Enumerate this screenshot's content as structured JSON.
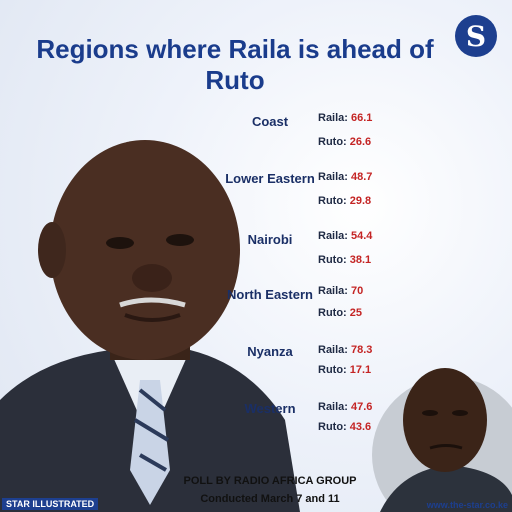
{
  "title": "Regions where Raila is ahead of Ruto",
  "logo": {
    "letter": "S",
    "icon": "the-star-logo-icon"
  },
  "candidates": {
    "a_label": "Raila:",
    "b_label": "Ruto:"
  },
  "regions": [
    {
      "name": "Coast",
      "raila": "66.1",
      "ruto": "26.6"
    },
    {
      "name": "Lower Eastern",
      "raila": "48.7",
      "ruto": "29.8"
    },
    {
      "name": "Nairobi",
      "raila": "54.4",
      "ruto": "38.1"
    },
    {
      "name": "North Eastern",
      "raila": "70",
      "ruto": "25"
    },
    {
      "name": "Nyanza",
      "raila": "78.3",
      "ruto": "17.1"
    },
    {
      "name": "Western",
      "raila": "47.6",
      "ruto": "43.6"
    }
  ],
  "poll": {
    "source": "POLL BY RADIO AFRICA GROUP",
    "date": "Conducted March 7 and 11"
  },
  "footer": {
    "credit": "STAR ILLUSTRATED",
    "url": "www.the-star.co.ke"
  },
  "colors": {
    "title": "#1a3c8c",
    "values": "#c42424",
    "brand": "#1d3f8f"
  }
}
